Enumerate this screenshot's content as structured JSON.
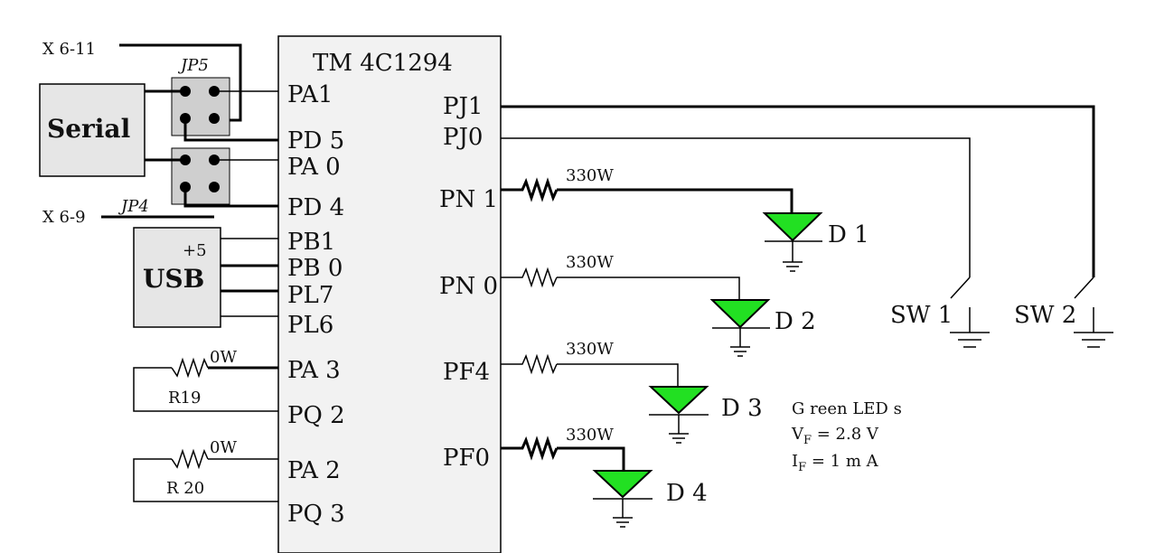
{
  "chip": {
    "name": "TM 4C1294",
    "left_pins": [
      "PA1",
      "PD 5",
      "PA 0",
      "PD 4",
      "PB1",
      "PB 0",
      "PL7",
      "PL6",
      "PA 3",
      "PQ 2",
      "PA 2",
      "PQ 3"
    ],
    "right_pins": [
      "PJ1",
      "PJ0",
      "PN 1",
      "PN 0",
      "PF4",
      "PF0"
    ]
  },
  "serial_box": {
    "label": "Serial"
  },
  "usb_box": {
    "label": "USB",
    "supply": "+5"
  },
  "jumpers": {
    "jp5": "JP5",
    "jp4": "JP4"
  },
  "connectors": {
    "x6_11": "X 6-11",
    "x6_9": "X 6-9"
  },
  "resistors": {
    "r19": {
      "name": "R19",
      "value": "0W"
    },
    "r20": {
      "name": "R 20",
      "value": "0W"
    },
    "led_series": [
      "330W",
      "330W",
      "330W",
      "330W"
    ]
  },
  "leds": [
    "D 1",
    "D 2",
    "D 3",
    "D 4"
  ],
  "switches": [
    "SW 1",
    "SW 2"
  ],
  "notes": {
    "line1": "G reen LED s",
    "vf_label": "V",
    "vf_sub": "F",
    "vf_value": " = 2.8 V",
    "if_label": "I",
    "if_sub": "F",
    "if_value": " = 1 m A"
  },
  "colors": {
    "led_fill": "#22e022",
    "box_fill": "#e6e6e6",
    "chip_fill": "#f2f2f2"
  }
}
